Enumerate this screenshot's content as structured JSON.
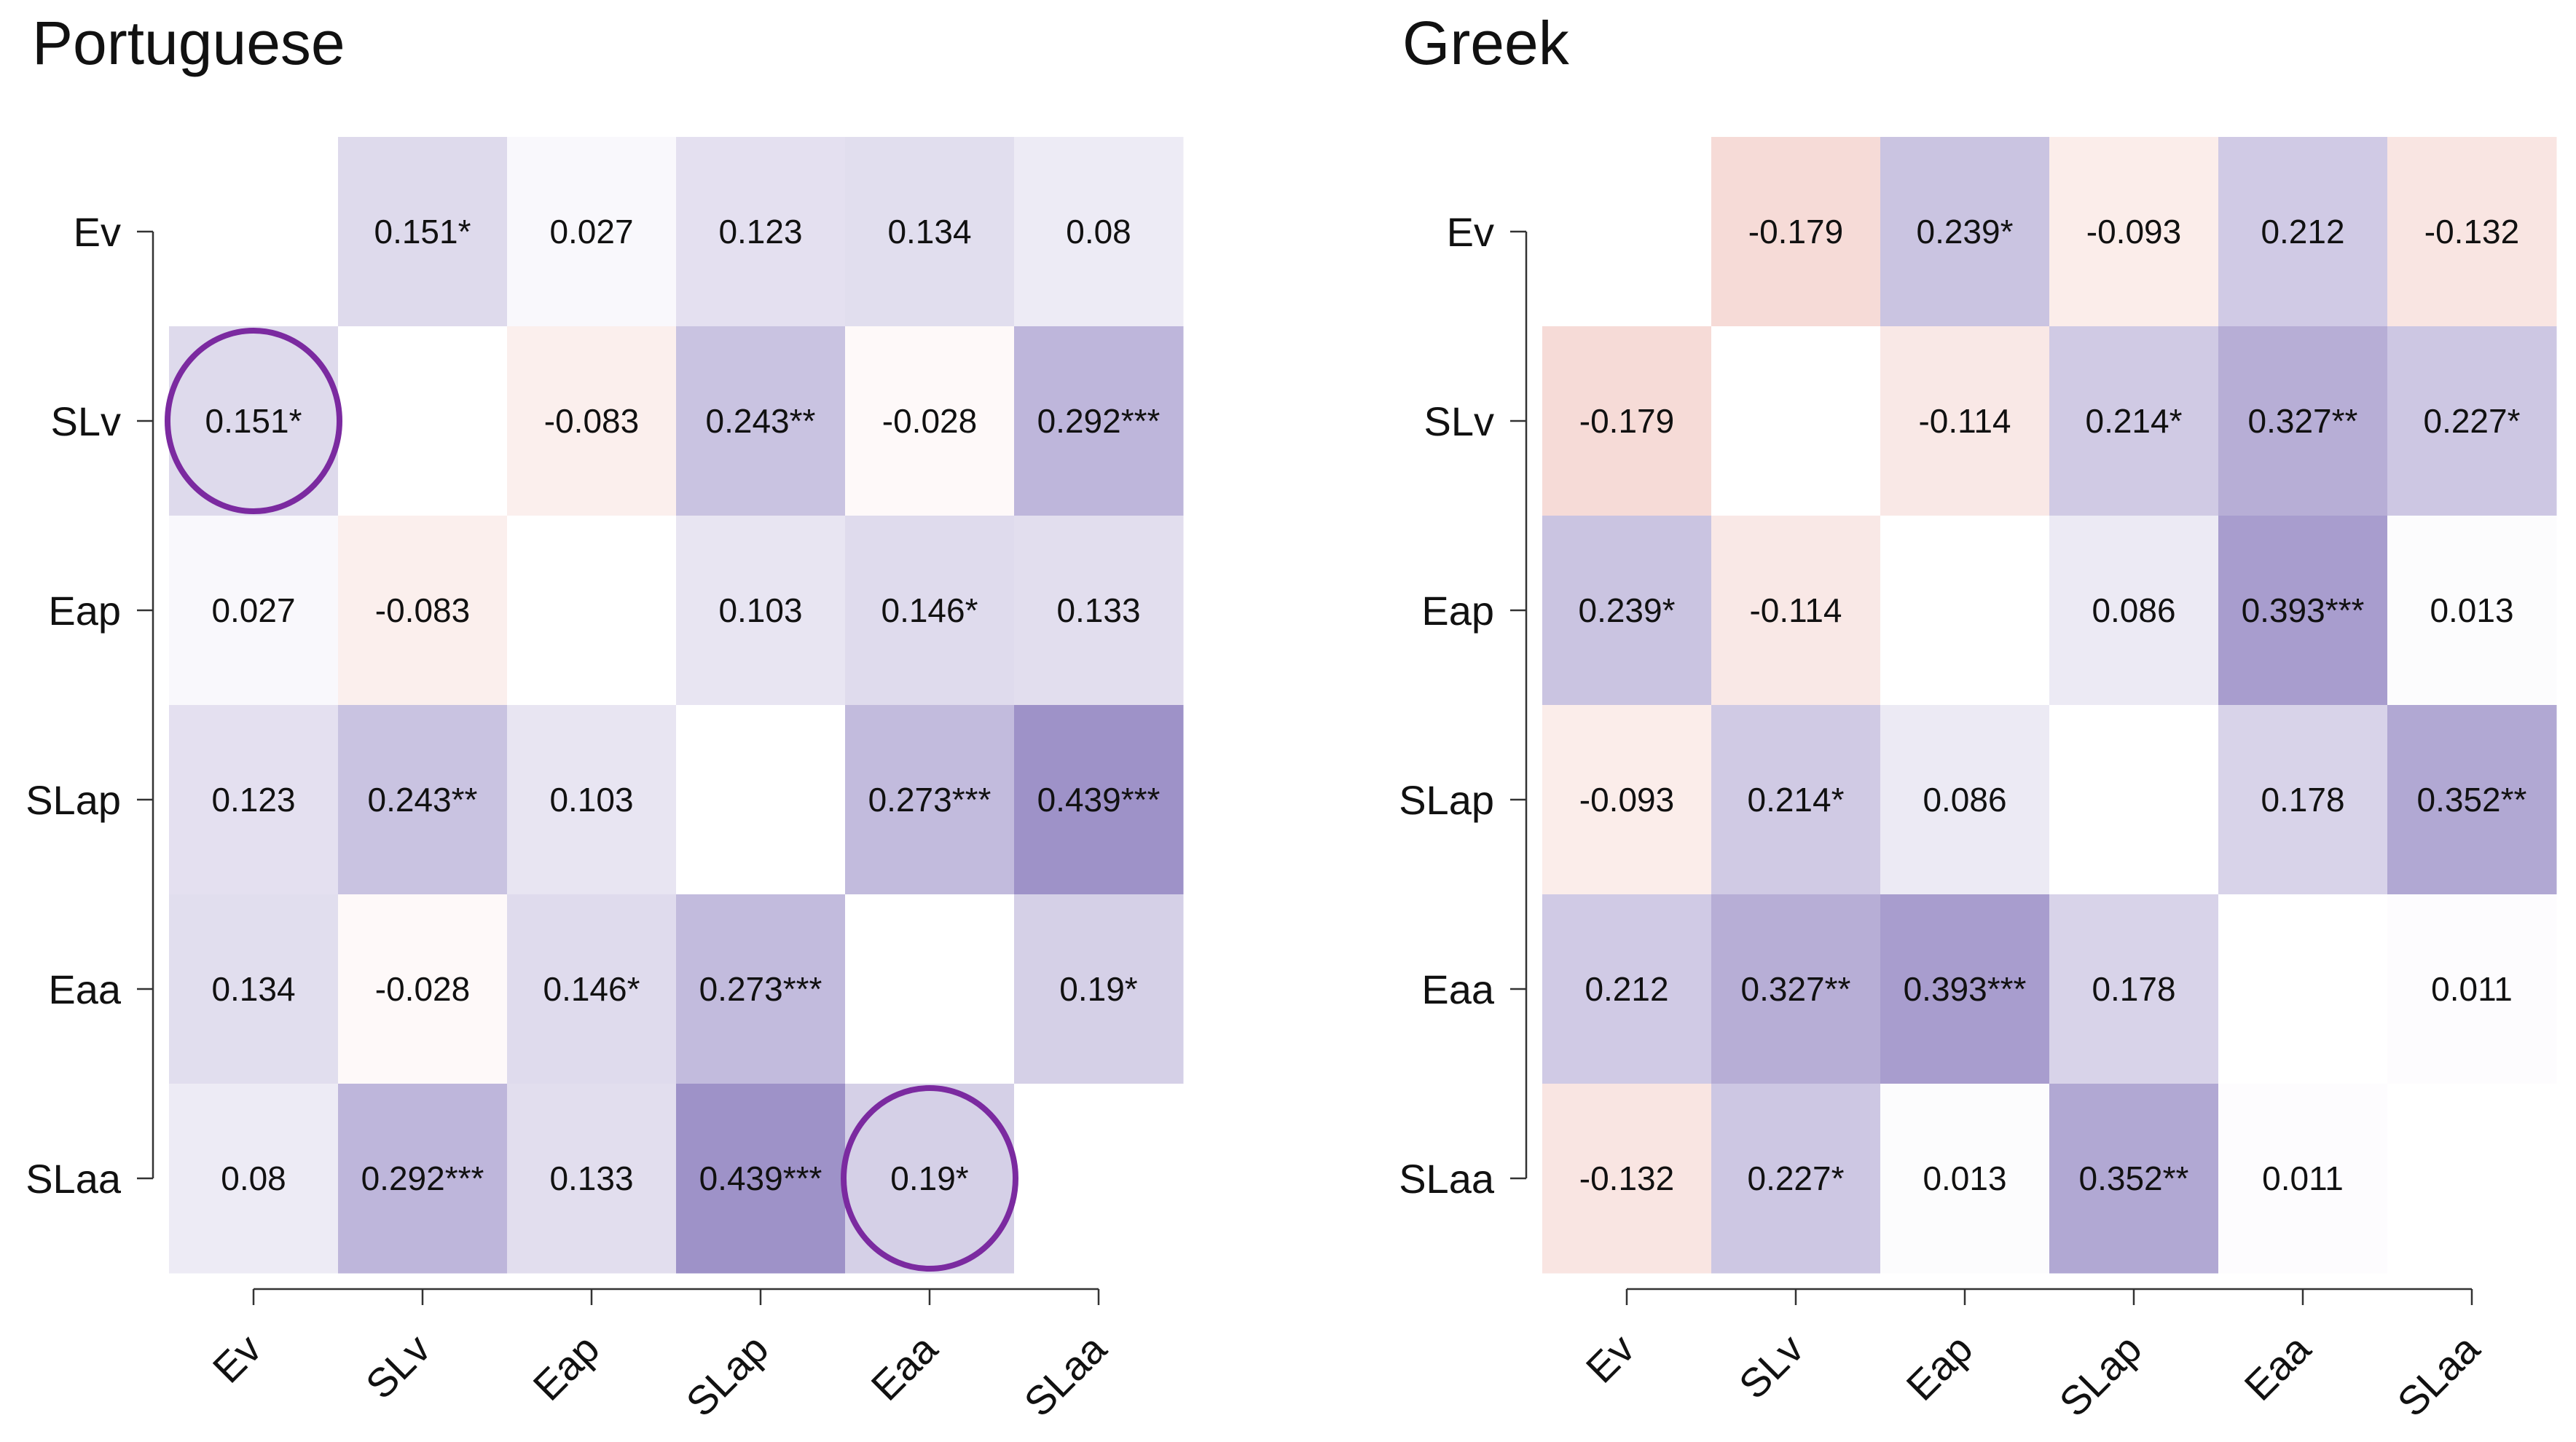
{
  "chart_data": [
    {
      "type": "heatmap",
      "title": "Portuguese",
      "variables": [
        "Ev",
        "SLv",
        "Eap",
        "SLap",
        "Eaa",
        "SLaa"
      ],
      "values": [
        [
          null,
          0.151,
          0.027,
          0.123,
          0.134,
          0.08
        ],
        [
          0.151,
          null,
          -0.083,
          0.243,
          -0.028,
          0.292
        ],
        [
          0.027,
          -0.083,
          null,
          0.103,
          0.146,
          0.133
        ],
        [
          0.123,
          0.243,
          0.103,
          null,
          0.273,
          0.439
        ],
        [
          0.134,
          -0.028,
          0.146,
          0.273,
          null,
          0.19
        ],
        [
          0.08,
          0.292,
          0.133,
          0.439,
          0.19,
          null
        ]
      ],
      "labels": [
        [
          "",
          "0.151*",
          "0.027",
          "0.123",
          "0.134",
          "0.08"
        ],
        [
          "0.151*",
          "",
          "-0.083",
          "0.243**",
          "-0.028",
          "0.292***"
        ],
        [
          "0.027",
          "-0.083",
          "",
          "0.103",
          "0.146*",
          "0.133"
        ],
        [
          "0.123",
          "0.243**",
          "0.103",
          "",
          "0.273***",
          "0.439***"
        ],
        [
          "0.134",
          "-0.028",
          "0.146*",
          "0.273***",
          "",
          "0.19*"
        ],
        [
          "0.08",
          "0.292***",
          "0.133",
          "0.439***",
          "0.19*",
          ""
        ]
      ],
      "highlights": [
        [
          1,
          0
        ],
        [
          5,
          4
        ]
      ]
    },
    {
      "type": "heatmap",
      "title": "Greek",
      "variables": [
        "Ev",
        "SLv",
        "Eap",
        "SLap",
        "Eaa",
        "SLaa"
      ],
      "values": [
        [
          null,
          -0.179,
          0.239,
          -0.093,
          0.212,
          -0.132
        ],
        [
          -0.179,
          null,
          -0.114,
          0.214,
          0.327,
          0.227
        ],
        [
          0.239,
          -0.114,
          null,
          0.086,
          0.393,
          0.013
        ],
        [
          -0.093,
          0.214,
          0.086,
          null,
          0.178,
          0.352
        ],
        [
          0.212,
          0.327,
          0.393,
          0.178,
          null,
          0.011
        ],
        [
          -0.132,
          0.227,
          0.013,
          0.352,
          0.011,
          null
        ]
      ],
      "labels": [
        [
          "",
          "-0.179",
          "0.239*",
          "-0.093",
          "0.212",
          "-0.132"
        ],
        [
          "-0.179",
          "",
          "-0.114",
          "0.214*",
          "0.327**",
          "0.227*"
        ],
        [
          "0.239*",
          "-0.114",
          "",
          "0.086",
          "0.393***",
          "0.013"
        ],
        [
          "-0.093",
          "0.214*",
          "0.086",
          "",
          "0.178",
          "0.352**"
        ],
        [
          "0.212",
          "0.327**",
          "0.393***",
          "0.178",
          "",
          "0.011"
        ],
        [
          "-0.132",
          "0.227*",
          "0.013",
          "0.352**",
          "0.011",
          ""
        ]
      ],
      "highlights": []
    }
  ],
  "colors": {
    "positive": "#7a6ab4",
    "negative": "#e2887a",
    "highlight_ring": "#7b2aa0",
    "axis": "#333333"
  }
}
